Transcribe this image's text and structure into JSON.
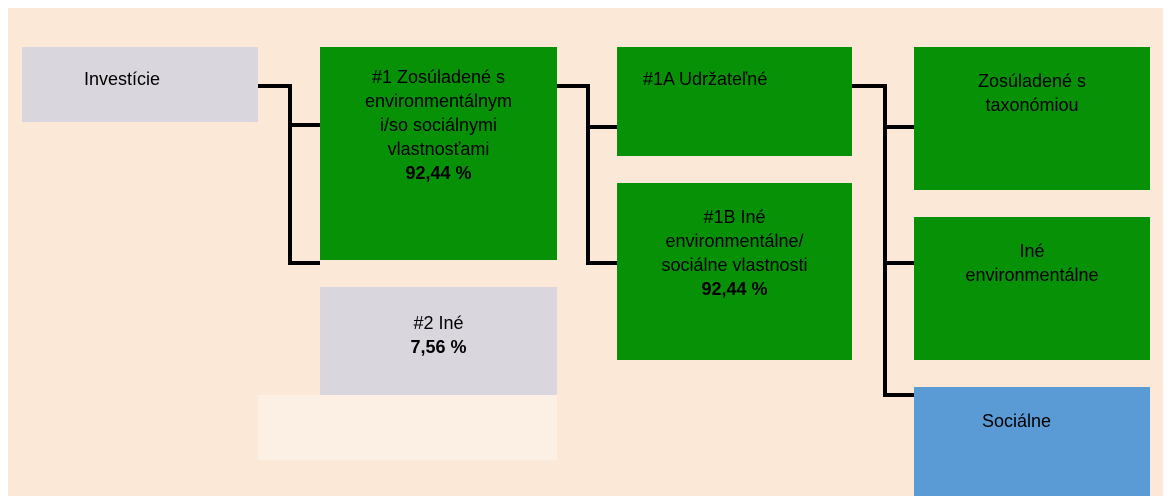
{
  "nodes": [
    {
      "lines": [
        "Investície"
      ]
    },
    {
      "lines": [
        "#1 Zosúladené s",
        "environmentálnym",
        "i/so sociálnymi",
        "vlastnosťami"
      ],
      "value": "92,44 %"
    },
    {
      "lines": [
        "#2 Iné"
      ],
      "value": "7,56 %"
    },
    {
      "lines": [
        "#1A Udržateľné"
      ]
    },
    {
      "lines": [
        "#1B Iné",
        "environmentálne/",
        "sociálne vlastnosti"
      ],
      "value": "92,44 %"
    },
    {
      "lines": [
        "Zosúladené s",
        "taxonómiou"
      ]
    },
    {
      "lines": [
        "Iné",
        "environmentálne"
      ]
    },
    {
      "lines": [
        "Sociálne"
      ]
    }
  ]
}
